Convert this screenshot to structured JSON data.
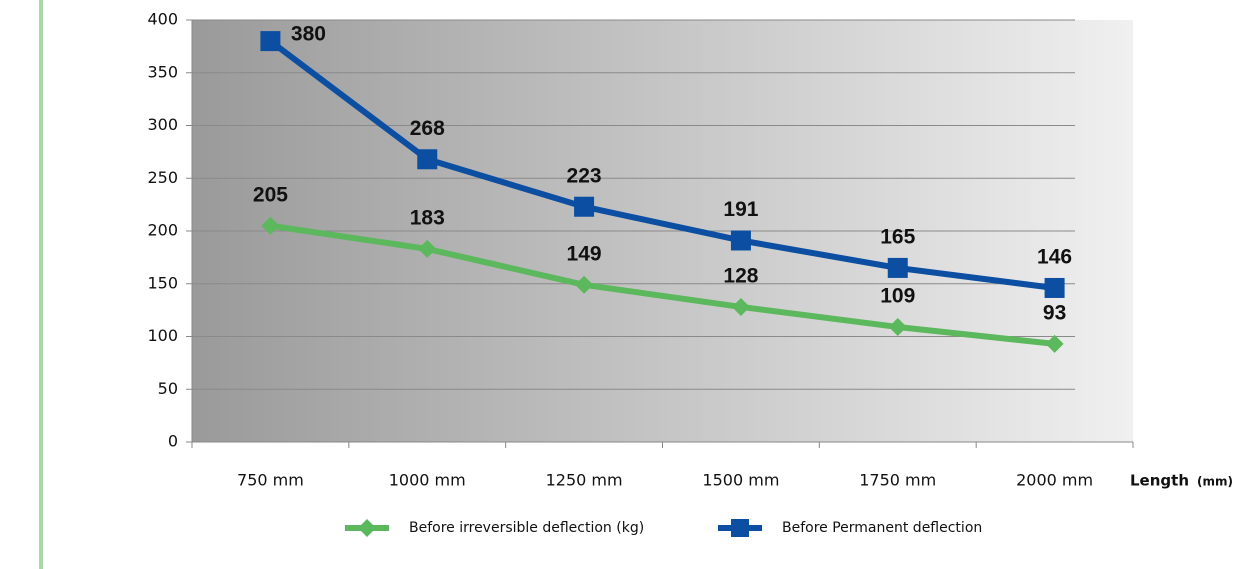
{
  "chart_data": {
    "type": "line",
    "categories": [
      "750 mm",
      "1000 mm",
      "1250 mm",
      "1500 mm",
      "1750 mm",
      "2000 mm"
    ],
    "series": [
      {
        "name": "Before irreversible deflection (kg)",
        "color": "#5cb85c",
        "marker": "diamond",
        "values": [
          205,
          183,
          149,
          128,
          109,
          93
        ]
      },
      {
        "name": "Before Permanent deflection",
        "color": "#0b4ea2",
        "marker": "square",
        "values": [
          380,
          268,
          223,
          191,
          165,
          146
        ]
      }
    ],
    "x_label": "Length",
    "x_label_unit": "(mm)",
    "ylim": [
      0,
      400
    ],
    "yticks": [
      0,
      50,
      100,
      150,
      200,
      250,
      300,
      350,
      400
    ],
    "grid": true,
    "legend": "bottom"
  }
}
